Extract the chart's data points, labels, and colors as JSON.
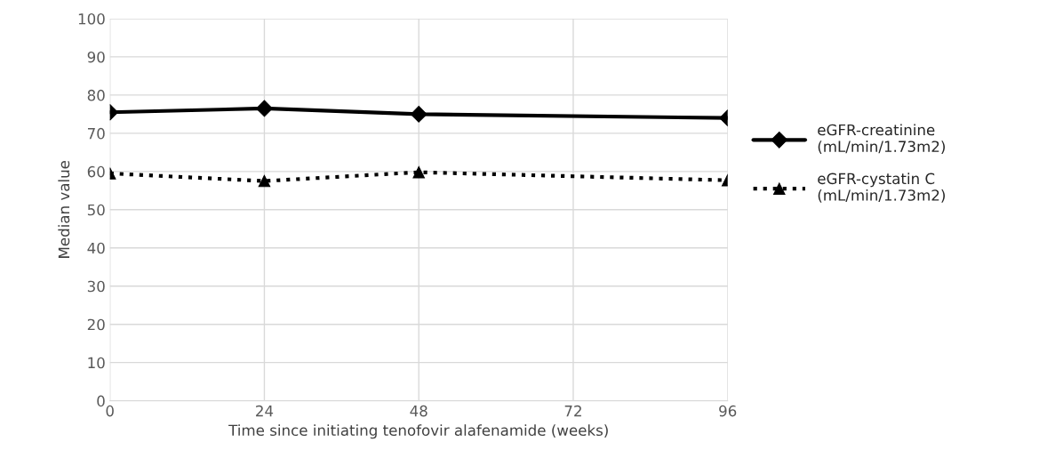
{
  "chart_data": {
    "type": "line",
    "xlabel": "Time since initiating tenofovir alafenamide (weeks)",
    "ylabel": "Median value",
    "x": [
      0,
      24,
      48,
      96
    ],
    "series": [
      {
        "name": "eGFR-creatinine\n(mL/min/1.73m2)",
        "color": "#000000",
        "values": [
          75.5,
          76.5,
          75.0,
          74.0
        ],
        "marker": "diamond",
        "line_style": "solid"
      },
      {
        "name": "eGFR-cystatin C\n(mL/min/1.73m2)",
        "color": "#000000",
        "values": [
          59.5,
          57.5,
          59.8,
          57.7
        ],
        "marker": "triangle",
        "line_style": "dotted"
      }
    ],
    "xlim": [
      0,
      96
    ],
    "xticks": [
      0,
      24,
      48,
      72,
      96
    ],
    "ylim": [
      0,
      100
    ],
    "yticks": [
      0,
      10,
      20,
      30,
      40,
      50,
      60,
      70,
      80,
      90,
      100
    ],
    "grid": true,
    "legend": "right"
  }
}
